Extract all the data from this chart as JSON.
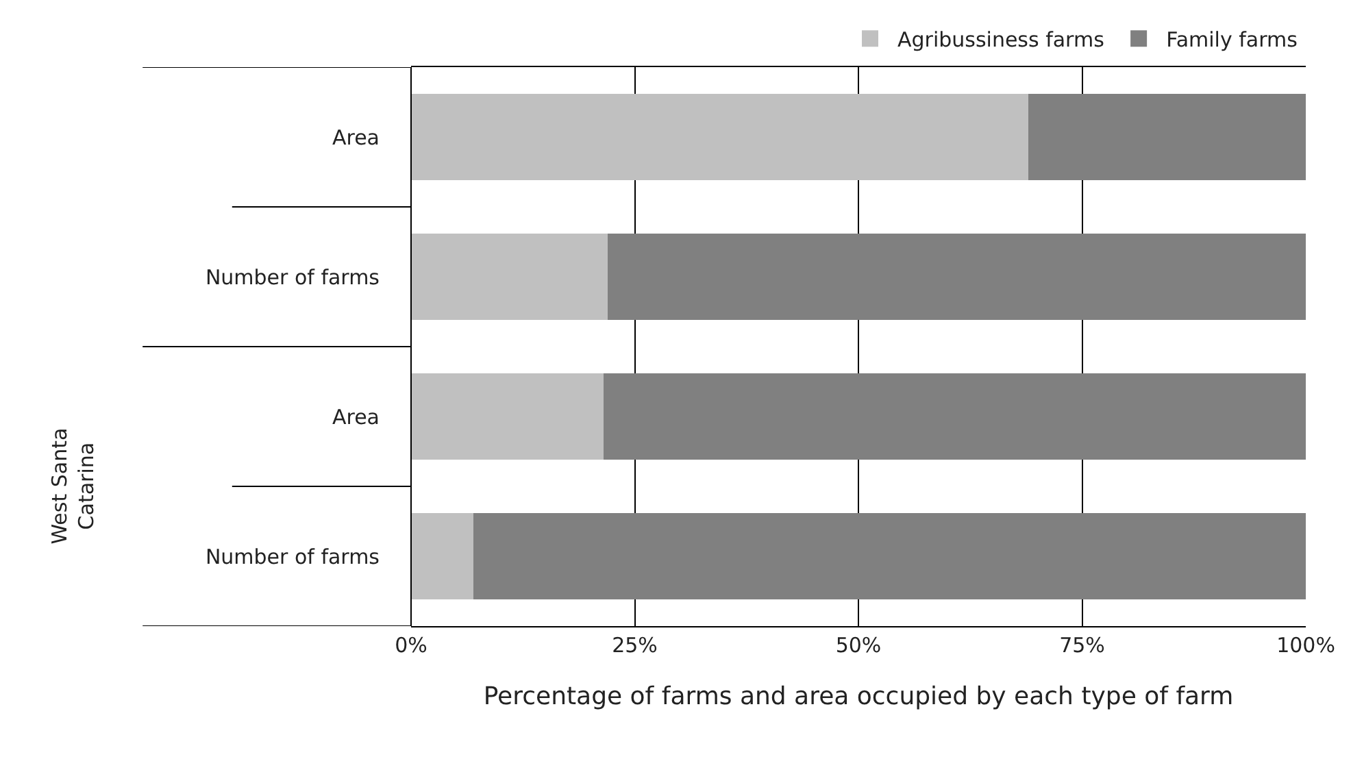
{
  "chart_data": {
    "type": "bar",
    "orientation": "horizontal",
    "stacked": true,
    "categories": [
      "Area",
      "Number of farms",
      "Area",
      "Number of farms"
    ],
    "series": [
      {
        "name": "Agribussiness farms",
        "color": "#c0c0c0",
        "values": [
          69,
          22,
          21.5,
          7
        ]
      },
      {
        "name": "Family farms",
        "color": "#808080",
        "values": [
          31,
          78,
          78.5,
          93
        ]
      }
    ],
    "xlabel": "Percentage of farms and area occupied by each type of farm",
    "xlim": [
      0,
      100
    ],
    "xticks": [
      {
        "value": 0,
        "label": "0%"
      },
      {
        "value": 25,
        "label": "25%"
      },
      {
        "value": 50,
        "label": "50%"
      },
      {
        "value": 75,
        "label": "75%"
      },
      {
        "value": 100,
        "label": "100%"
      }
    ],
    "grid": "x",
    "legend": "top right",
    "annotations": [
      "West Santa Catarina"
    ]
  }
}
